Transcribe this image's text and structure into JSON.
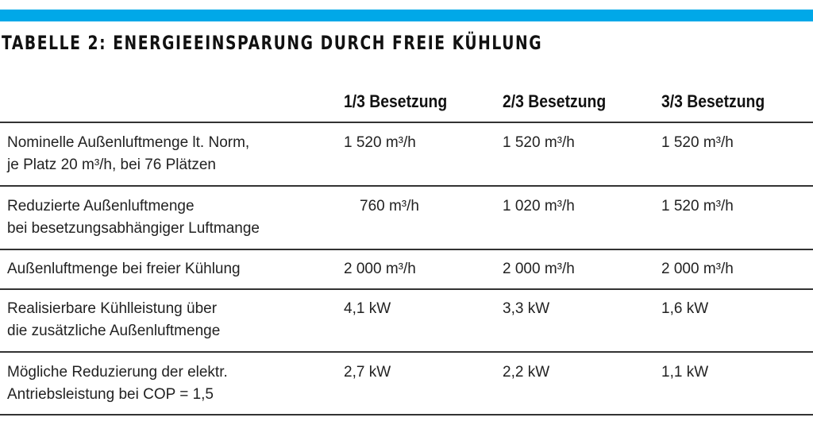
{
  "accent_color": "#00a8e8",
  "title": "TABELLE 2: ENERGIEEINSPARUNG DURCH FREIE KÜHLUNG",
  "columns": [
    "1/3 Besetzung",
    "2/3 Besetzung",
    "3/3 Besetzung"
  ],
  "rows": [
    {
      "label": [
        "Nominelle Außenluftmenge lt. Norm,",
        "je Platz 20 m³/h, bei 76 Plätzen"
      ],
      "values": [
        "1 520 m³/h",
        "1 520 m³/h",
        "1 520 m³/h"
      ]
    },
    {
      "label": [
        "Reduzierte Außenluftmenge",
        "bei besetzungsabhängiger Luftmange"
      ],
      "values": [
        "760 m³/h",
        "1 020 m³/h",
        "1 520 m³/h"
      ]
    },
    {
      "label": [
        "Außenluftmenge bei freier Kühlung",
        ""
      ],
      "values": [
        "2 000 m³/h",
        "2 000 m³/h",
        "2 000 m³/h"
      ]
    },
    {
      "label": [
        "Realisierbare Kühlleistung über",
        "die zusätzliche Außenluftmenge"
      ],
      "values": [
        "4,1 kW",
        "3,3 kW",
        "1,6 kW"
      ]
    },
    {
      "label": [
        "Mögliche Reduzierung der elektr.",
        "Antriebsleistung bei COP = 1,5"
      ],
      "values": [
        "2,7 kW",
        "2,2 kW",
        "1,1 kW"
      ]
    }
  ]
}
